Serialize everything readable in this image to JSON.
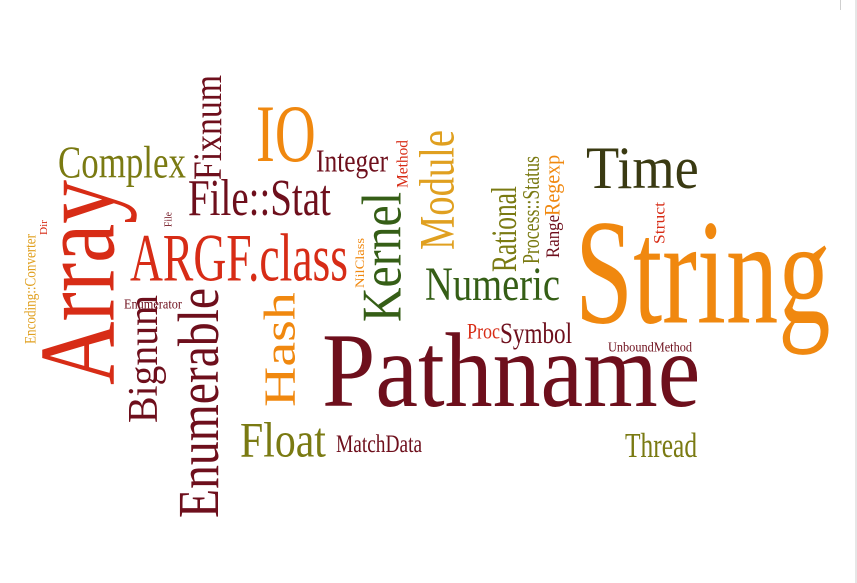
{
  "colors": {
    "red": "#d72c16",
    "orange": "#f0880f",
    "maroon": "#6e0f1c",
    "green": "#355e16",
    "olive": "#7a7a12",
    "gold": "#e0a020",
    "dark": "#3a3a12",
    "brown": "#8a3a10"
  },
  "words": [
    {
      "id": "string",
      "text": "String",
      "color": "orange"
    },
    {
      "id": "pathname",
      "text": "Pathname",
      "color": "maroon"
    },
    {
      "id": "array",
      "text": "Array",
      "color": "red"
    },
    {
      "id": "time",
      "text": "Time",
      "color": "dark"
    },
    {
      "id": "argf-class",
      "text": "ARGF.class",
      "color": "red"
    },
    {
      "id": "io",
      "text": "IO",
      "color": "orange"
    },
    {
      "id": "enumerable",
      "text": "Enumerable",
      "color": "maroon"
    },
    {
      "id": "complex",
      "text": "Complex",
      "color": "olive"
    },
    {
      "id": "file-stat",
      "text": "File::Stat",
      "color": "maroon"
    },
    {
      "id": "hash",
      "text": "Hash",
      "color": "orange"
    },
    {
      "id": "kernel",
      "text": "Kernel",
      "color": "green"
    },
    {
      "id": "module",
      "text": "Module",
      "color": "gold"
    },
    {
      "id": "numeric",
      "text": "Numeric",
      "color": "green"
    },
    {
      "id": "float",
      "text": "Float",
      "color": "olive"
    },
    {
      "id": "fixnum",
      "text": "Fixnum",
      "color": "maroon"
    },
    {
      "id": "bignum",
      "text": "Bignum",
      "color": "maroon"
    },
    {
      "id": "integer",
      "text": "Integer",
      "color": "maroon"
    },
    {
      "id": "rational",
      "text": "Rational",
      "color": "olive"
    },
    {
      "id": "symbol",
      "text": "Symbol",
      "color": "maroon"
    },
    {
      "id": "thread",
      "text": "Thread",
      "color": "olive"
    },
    {
      "id": "matchdata",
      "text": "MatchData",
      "color": "maroon"
    },
    {
      "id": "proc",
      "text": "Proc",
      "color": "red"
    },
    {
      "id": "process-status",
      "text": "Process::Status",
      "color": "olive"
    },
    {
      "id": "range",
      "text": "Range",
      "color": "maroon"
    },
    {
      "id": "regexp",
      "text": "Regexp",
      "color": "orange"
    },
    {
      "id": "struct",
      "text": "Struct",
      "color": "red"
    },
    {
      "id": "method",
      "text": "Method",
      "color": "red"
    },
    {
      "id": "unboundmethod",
      "text": "UnboundMethod",
      "color": "maroon"
    },
    {
      "id": "enumerator",
      "text": "Enumerator",
      "color": "maroon"
    },
    {
      "id": "nilclass",
      "text": "NilClass",
      "color": "orange"
    },
    {
      "id": "encoding-converter",
      "text": "Encoding::Converter",
      "color": "gold"
    },
    {
      "id": "dir",
      "text": "Dir",
      "color": "red"
    },
    {
      "id": "file",
      "text": "File",
      "color": "maroon"
    }
  ]
}
